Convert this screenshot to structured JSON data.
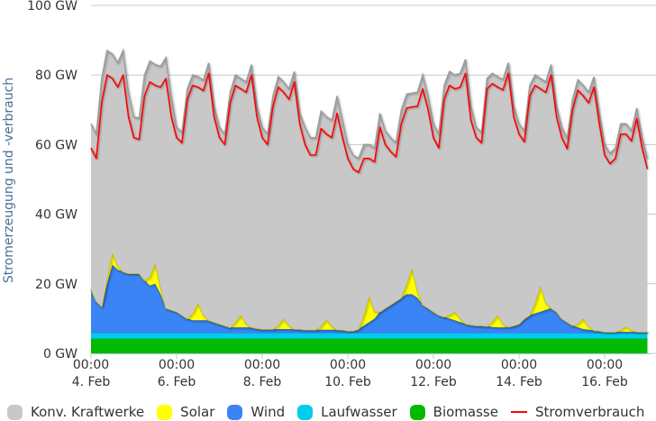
{
  "chart_data": {
    "type": "area",
    "stacked": true,
    "ylabel": "Stromerzeugung und -verbrauch",
    "ylim": [
      0,
      100
    ],
    "yticks": [
      "0 GW",
      "20 GW",
      "40 GW",
      "60 GW",
      "80 GW",
      "100 GW"
    ],
    "ytick_values": [
      0,
      20,
      40,
      60,
      80,
      100
    ],
    "x_start": "4. Feb 00:00",
    "x_step_hours": 3,
    "xticks": [
      {
        "index": 0,
        "time": "00:00",
        "date": "4. Feb"
      },
      {
        "index": 16,
        "time": "00:00",
        "date": "6. Feb"
      },
      {
        "index": 32,
        "time": "00:00",
        "date": "8. Feb"
      },
      {
        "index": 48,
        "time": "00:00",
        "date": "10. Feb"
      },
      {
        "index": 64,
        "time": "00:00",
        "date": "12. Feb"
      },
      {
        "index": 80,
        "time": "00:00",
        "date": "14. Feb"
      },
      {
        "index": 96,
        "time": "00:00",
        "date": "16. Feb"
      }
    ],
    "grid": true,
    "legend_position": "bottom",
    "series": [
      {
        "name": "Biomasse",
        "color": "#00bb00",
        "constant": 4.2
      },
      {
        "name": "Laufwasser",
        "color": "#00ccee",
        "constant": 1.6
      },
      {
        "name": "Wind",
        "color": "#3a84f5",
        "values": [
          12.7,
          9.2,
          7.7,
          14.2,
          19.7,
          18.2,
          17.7,
          17.2,
          17.2,
          17.2,
          15.2,
          13.7,
          14.2,
          11.2,
          7.2,
          6.7,
          6.2,
          5.2,
          4.2,
          3.7,
          3.7,
          3.7,
          3.7,
          3.2,
          2.7,
          2.2,
          1.7,
          1.7,
          1.7,
          1.7,
          1.7,
          1.4,
          1.2,
          1.2,
          1.2,
          1.2,
          1.2,
          1.2,
          1.2,
          1.2,
          1.0,
          1.0,
          1.0,
          1.0,
          1.0,
          1.0,
          1.0,
          1.0,
          0.7,
          0.7,
          1.2,
          2.2,
          3.2,
          4.2,
          6.2,
          7.2,
          8.2,
          9.2,
          10.2,
          11.2,
          11.2,
          10.2,
          8.2,
          7.2,
          6.2,
          5.2,
          4.7,
          4.2,
          3.7,
          3.2,
          2.7,
          2.4,
          2.2,
          2.2,
          2.0,
          1.8,
          1.7,
          1.7,
          1.8,
          2.2,
          2.7,
          4.2,
          5.2,
          5.7,
          6.2,
          6.7,
          7.2,
          6.2,
          4.2,
          3.2,
          2.2,
          1.7,
          1.2,
          1.0,
          0.8,
          0.7,
          0.4,
          0.4,
          0.4,
          0.4,
          0.4,
          0.4,
          0.4,
          0.4,
          0.4
        ]
      },
      {
        "name": "Solar",
        "color": "#ffff00",
        "values": [
          0,
          0,
          0,
          1.5,
          3.5,
          1,
          0,
          0,
          0,
          0,
          0,
          2.5,
          6,
          2,
          0,
          0,
          0,
          0,
          0,
          2,
          5,
          1.5,
          0,
          0,
          0,
          0,
          0,
          1.5,
          3.5,
          1,
          0,
          0,
          0,
          0,
          0,
          1,
          3,
          1,
          0,
          0,
          0,
          0,
          0,
          1,
          3,
          1,
          0,
          0,
          0,
          0,
          0,
          3,
          7.5,
          2,
          0,
          0,
          0,
          0,
          0,
          3,
          7.5,
          2,
          0,
          0,
          0,
          0,
          0,
          1,
          2.5,
          1,
          0,
          0,
          0,
          0,
          0,
          1.5,
          3.5,
          1,
          0,
          0,
          0,
          0,
          0,
          3,
          7.5,
          2,
          0,
          0,
          0,
          0,
          0,
          1,
          3,
          1,
          0,
          0,
          0,
          0,
          0,
          0.5,
          1.5,
          0.5,
          0,
          0,
          0
        ]
      },
      {
        "name": "Konv. Kraftwerke",
        "color": "#c8c8c8",
        "values": [
          47.5,
          48,
          65.5,
          65.5,
          57,
          58.5,
          63.5,
          52,
          45,
          44.5,
          59,
          62,
          57,
          63.5,
          72,
          61.5,
          53,
          52.5,
          66,
          68.5,
          65,
          67.5,
          74,
          62,
          56.5,
          55,
          67.5,
          71,
          68,
          69.5,
          75.5,
          63.8,
          58,
          56,
          67,
          71.5,
          68,
          68,
          74,
          62,
          58.2,
          55.2,
          55.2,
          61.8,
          58.2,
          59.2,
          67.2,
          60.2,
          53.5,
          50.5,
          49,
          49,
          43.5,
          47,
          57,
          51,
          48,
          45.5,
          54,
          54.5,
          50.3,
          57,
          66,
          61,
          54,
          52,
          66.5,
          70,
          68,
          70.5,
          76,
          62.8,
          57,
          55.5,
          71.2,
          71.4,
          68.5,
          70.2,
          75.9,
          63,
          57.5,
          53.8,
          66,
          65.5,
          59.5,
          63.5,
          70,
          59,
          55,
          52.8,
          65,
          70.1,
          67,
          67.2,
          72.9,
          62.5,
          53.8,
          51.3,
          52.8,
          59.3,
          58.3,
          57.3,
          64.3,
          55.8,
          49.8
        ]
      }
    ],
    "line": {
      "name": "Stromverbrauch",
      "color": "#ff0000",
      "values": [
        59,
        56,
        72,
        80,
        79,
        76.5,
        80,
        68,
        62,
        61.5,
        74,
        78,
        77,
        76.5,
        79,
        68,
        62,
        60.5,
        73,
        77,
        76.5,
        75.5,
        80.5,
        68,
        62,
        60,
        72,
        77,
        76,
        75,
        80,
        68,
        62,
        60,
        71,
        76.5,
        75,
        73,
        78,
        66,
        60,
        57,
        57,
        64.6,
        63,
        62,
        69,
        62,
        56,
        53,
        52,
        56,
        56,
        55,
        65,
        60,
        58,
        56.5,
        66,
        70.5,
        70.8,
        71,
        76,
        70,
        62,
        59,
        73,
        77,
        76,
        76.5,
        80.5,
        67,
        62,
        60.5,
        76,
        77.5,
        76.5,
        75.7,
        80.5,
        68,
        63,
        60.8,
        74,
        77,
        76,
        75,
        80,
        68,
        62,
        58.8,
        70,
        75.6,
        74,
        72,
        76.5,
        66,
        57,
        54.5,
        56,
        63,
        63,
        61,
        67.5,
        59,
        53
      ]
    }
  },
  "legend": [
    {
      "label": "Konv. Kraftwerke",
      "color": "#c8c8c8",
      "kind": "area"
    },
    {
      "label": "Solar",
      "color": "#ffff00",
      "kind": "area"
    },
    {
      "label": "Wind",
      "color": "#3a84f5",
      "kind": "area"
    },
    {
      "label": "Laufwasser",
      "color": "#00ccee",
      "kind": "area"
    },
    {
      "label": "Biomasse",
      "color": "#00bb00",
      "kind": "area"
    },
    {
      "label": "Stromverbrauch",
      "color": "#ff0000",
      "kind": "line"
    }
  ]
}
